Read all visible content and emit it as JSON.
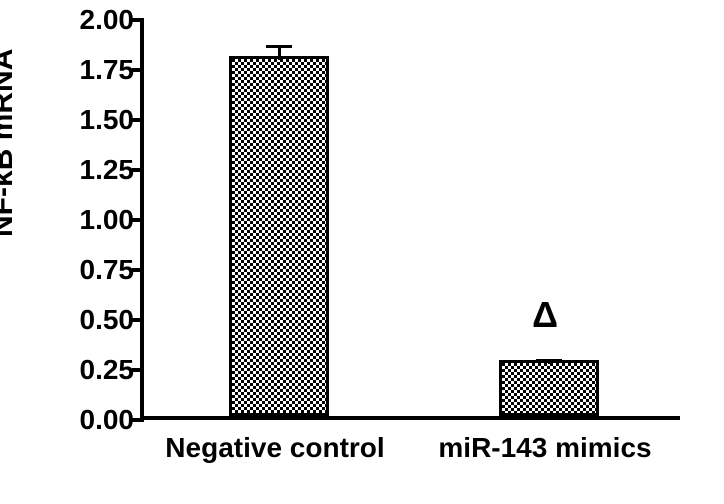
{
  "chart": {
    "type": "bar",
    "ylabel": "NF-κB mRNA",
    "ylabel_fontsize": 30,
    "ylabel_fontweight": "bold",
    "ylim": [
      0,
      2.0
    ],
    "ytick_step": 0.25,
    "yticks": [
      "0.00",
      "0.25",
      "0.50",
      "0.75",
      "1.00",
      "1.25",
      "1.50",
      "1.75",
      "2.00"
    ],
    "ytick_fontsize": 28,
    "categories": [
      "Negative control",
      "miR-143 mimics"
    ],
    "xtick_fontsize": 28,
    "xtick_fontweight": "bold",
    "values": [
      1.8,
      0.28
    ],
    "errors": [
      0.07,
      0.02
    ],
    "bar_width": 0.37,
    "bar_fill": "checkerboard",
    "bar_color": "#000000",
    "bar_border_color": "#000000",
    "bar_border_width": 3,
    "background_color": "#ffffff",
    "axis_color": "#000000",
    "axis_width": 4,
    "error_bar_width": 3,
    "error_cap_width": 26,
    "annotations": [
      {
        "category_index": 1,
        "symbol": "Δ",
        "fontsize": 36,
        "offset_y": 30
      }
    ]
  }
}
